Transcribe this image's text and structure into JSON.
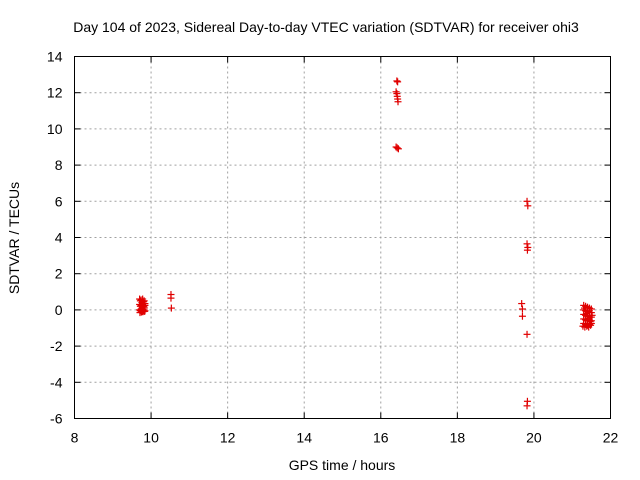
{
  "chart_data": {
    "type": "scatter",
    "title": "Day 104 of 2023, Sidereal Day-to-day VTEC variation (SDTVAR) for receiver ohi3",
    "xlabel": "GPS time / hours",
    "ylabel": "SDTVAR / TECUs",
    "xlim": [
      8,
      22
    ],
    "ylim": [
      -6,
      14
    ],
    "xticks": [
      8,
      10,
      12,
      14,
      16,
      18,
      20,
      22
    ],
    "yticks": [
      -6,
      -4,
      -2,
      0,
      2,
      4,
      6,
      8,
      10,
      12,
      14
    ],
    "grid": true,
    "marker": "+",
    "color": "#e00000",
    "series": [
      {
        "name": "SDTVAR",
        "points": [
          [
            9.7,
            0.6
          ],
          [
            9.72,
            0.5
          ],
          [
            9.74,
            0.55
          ],
          [
            9.76,
            0.4
          ],
          [
            9.78,
            0.6
          ],
          [
            9.8,
            0.45
          ],
          [
            9.82,
            0.5
          ],
          [
            9.84,
            0.35
          ],
          [
            9.7,
            0.3
          ],
          [
            9.72,
            0.2
          ],
          [
            9.74,
            0.25
          ],
          [
            9.76,
            0.1
          ],
          [
            9.78,
            0.3
          ],
          [
            9.8,
            0.2
          ],
          [
            9.82,
            0.15
          ],
          [
            9.84,
            0.25
          ],
          [
            9.7,
            0.0
          ],
          [
            9.72,
            -0.05
          ],
          [
            9.74,
            0.05
          ],
          [
            9.76,
            -0.1
          ],
          [
            9.78,
            0.0
          ],
          [
            9.8,
            -0.05
          ],
          [
            9.82,
            0.05
          ],
          [
            9.84,
            -0.05
          ],
          [
            9.71,
            -0.15
          ],
          [
            9.75,
            -0.12
          ],
          [
            9.79,
            -0.1
          ],
          [
            9.83,
            -0.08
          ],
          [
            10.52,
            0.85
          ],
          [
            10.52,
            0.65
          ],
          [
            10.53,
            0.1
          ],
          [
            16.42,
            12.65
          ],
          [
            16.44,
            12.6
          ],
          [
            16.4,
            12.05
          ],
          [
            16.42,
            11.95
          ],
          [
            16.43,
            11.8
          ],
          [
            16.44,
            11.65
          ],
          [
            16.45,
            11.5
          ],
          [
            16.4,
            9.0
          ],
          [
            16.43,
            8.95
          ],
          [
            16.46,
            8.9
          ],
          [
            19.68,
            0.35
          ],
          [
            19.7,
            0.05
          ],
          [
            19.7,
            -0.35
          ],
          [
            19.82,
            6.0
          ],
          [
            19.84,
            5.75
          ],
          [
            19.82,
            3.65
          ],
          [
            19.84,
            3.45
          ],
          [
            19.83,
            3.3
          ],
          [
            19.82,
            -1.35
          ],
          [
            19.83,
            -5.05
          ],
          [
            19.82,
            -5.3
          ],
          [
            21.3,
            0.25
          ],
          [
            21.35,
            0.2
          ],
          [
            21.4,
            0.15
          ],
          [
            21.45,
            0.1
          ],
          [
            21.5,
            0.05
          ],
          [
            21.3,
            0.0
          ],
          [
            21.35,
            -0.05
          ],
          [
            21.4,
            -0.1
          ],
          [
            21.45,
            -0.05
          ],
          [
            21.5,
            -0.15
          ],
          [
            21.3,
            -0.25
          ],
          [
            21.35,
            -0.3
          ],
          [
            21.4,
            -0.35
          ],
          [
            21.45,
            -0.3
          ],
          [
            21.5,
            -0.4
          ],
          [
            21.3,
            -0.5
          ],
          [
            21.35,
            -0.55
          ],
          [
            21.4,
            -0.6
          ],
          [
            21.45,
            -0.55
          ],
          [
            21.5,
            -0.6
          ],
          [
            21.3,
            -0.75
          ],
          [
            21.35,
            -0.8
          ],
          [
            21.4,
            -0.85
          ],
          [
            21.45,
            -0.8
          ],
          [
            21.5,
            -0.75
          ],
          [
            21.28,
            -0.9
          ],
          [
            21.33,
            -0.95
          ],
          [
            21.38,
            -0.9
          ],
          [
            21.43,
            -0.95
          ],
          [
            21.48,
            -0.85
          ],
          [
            21.32,
            0.1
          ],
          [
            21.37,
            -0.2
          ],
          [
            21.42,
            -0.45
          ],
          [
            21.47,
            -0.65
          ],
          [
            21.52,
            -0.3
          ]
        ]
      }
    ]
  }
}
